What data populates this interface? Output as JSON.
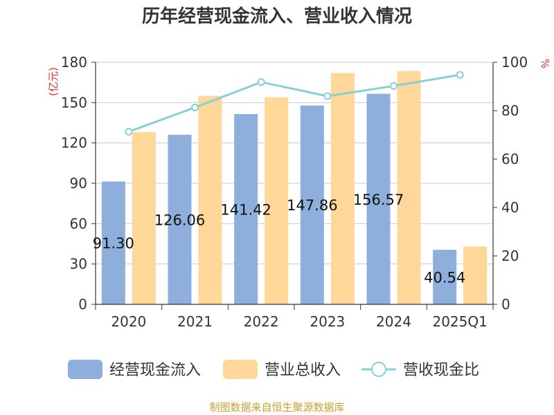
{
  "chart_data": {
    "type": "bar",
    "title": "历年经营现金流入、营业收入情况",
    "categories": [
      "2020",
      "2021",
      "2022",
      "2023",
      "2024",
      "2025Q1"
    ],
    "series": [
      {
        "name": "经营现金流入",
        "type": "bar",
        "axis": "left",
        "values": [
          91.3,
          126.06,
          141.42,
          147.86,
          156.57,
          40.54
        ],
        "labels": [
          "91.30",
          "126.06",
          "141.42",
          "147.86",
          "156.57",
          "40.54"
        ],
        "color": "#8eaedb"
      },
      {
        "name": "营业总收入",
        "type": "bar",
        "axis": "left",
        "values": [
          128,
          155,
          154,
          172,
          173.5,
          43
        ],
        "color": "#ffd899"
      },
      {
        "name": "营收现金比",
        "type": "line",
        "axis": "right",
        "values": [
          71.3,
          81.3,
          91.8,
          86.0,
          90.2,
          94.8
        ],
        "color": "#86d0d6"
      }
    ],
    "y_left": {
      "label": "(亿元)",
      "min": 0,
      "max": 180,
      "ticks": [
        "0",
        "30",
        "60",
        "90",
        "120",
        "150",
        "180"
      ]
    },
    "y_right": {
      "label": "%",
      "min": 0,
      "max": 100,
      "ticks": [
        "0",
        "20",
        "40",
        "60",
        "80",
        "100"
      ]
    },
    "grid": true,
    "legend_position": "bottom"
  },
  "source_text": "制图数据来自恒生聚源数据库"
}
